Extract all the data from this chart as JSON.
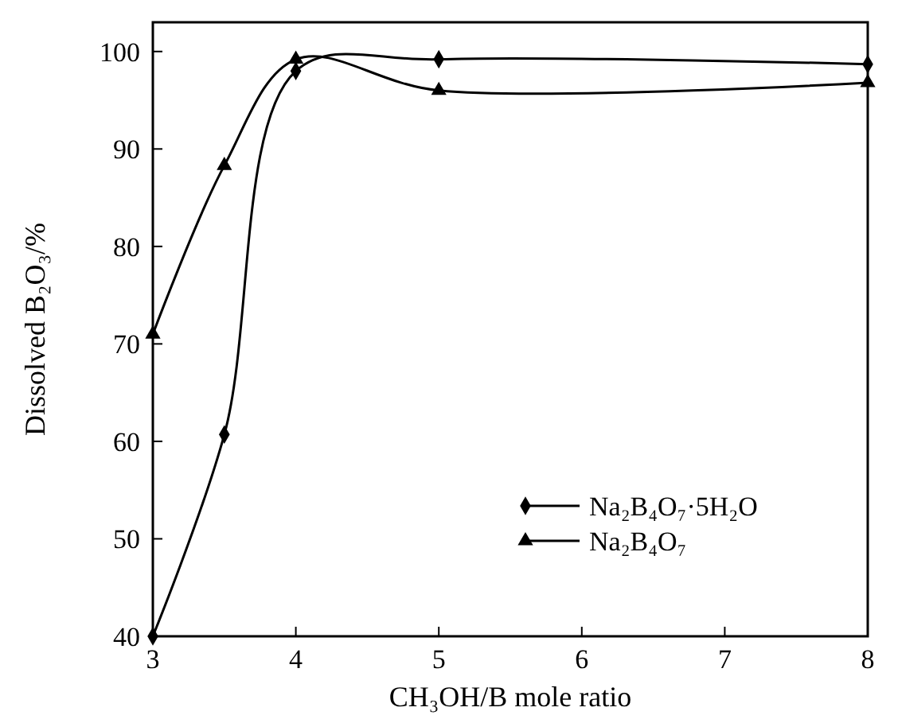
{
  "chart_data": {
    "type": "line",
    "xlabel": "CH₃OH/B mole ratio",
    "ylabel": "Dissolved B₂O₃/%",
    "x": [
      3,
      3.5,
      4,
      5,
      8
    ],
    "series": [
      {
        "name": "Na₂B₄O₇·5H₂O",
        "color": "#000000",
        "marker": "diamond",
        "values": [
          40,
          60.7,
          98,
          99.2,
          98.7
        ]
      },
      {
        "name": "Na₂B₄O₇",
        "color": "#000000",
        "marker": "triangle",
        "values": [
          71,
          88.3,
          99.2,
          96,
          96.8
        ]
      }
    ],
    "xlim": [
      3,
      8
    ],
    "xticks": [
      3,
      4,
      5,
      6,
      7,
      8
    ],
    "ylim": [
      40,
      103
    ],
    "yticks": [
      40,
      50,
      60,
      70,
      80,
      90,
      100
    ],
    "grid": false,
    "legend": "bottom right",
    "line_style": "solid"
  }
}
